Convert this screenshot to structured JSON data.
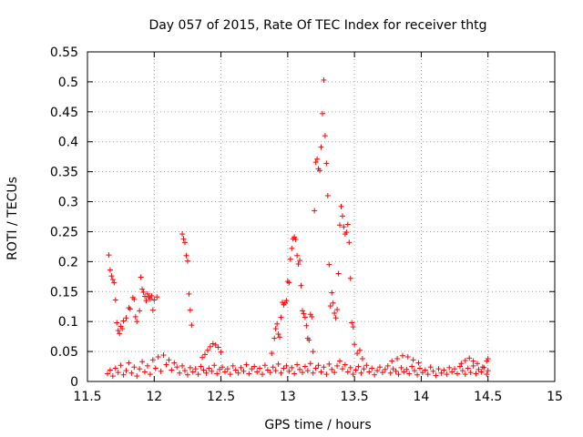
{
  "chart_data": {
    "type": "scatter",
    "title": "Day 057 of 2015, Rate Of TEC Index for receiver thtg",
    "xlabel": "GPS time / hours",
    "ylabel": "ROTI / TECUs",
    "xlim": [
      11.5,
      15
    ],
    "ylim": [
      0,
      0.55
    ],
    "xticks": [
      "11.5",
      "12",
      "12.5",
      "13",
      "13.5",
      "14",
      "14.5",
      "15"
    ],
    "yticks": [
      "0",
      "0.05",
      "0.1",
      "0.15",
      "0.2",
      "0.25",
      "0.3",
      "0.35",
      "0.4",
      "0.45",
      "0.5",
      "0.55"
    ],
    "grid": true,
    "marker": "+",
    "color": "#ff0000",
    "series": [
      {
        "name": "ROTI",
        "points": [
          [
            11.66,
            0.211
          ],
          [
            11.67,
            0.186
          ],
          [
            11.68,
            0.176
          ],
          [
            11.69,
            0.17
          ],
          [
            11.7,
            0.165
          ],
          [
            11.71,
            0.136
          ],
          [
            11.72,
            0.098
          ],
          [
            11.73,
            0.085
          ],
          [
            11.74,
            0.08
          ],
          [
            11.75,
            0.092
          ],
          [
            11.76,
            0.088
          ],
          [
            11.77,
            0.101
          ],
          [
            11.79,
            0.106
          ],
          [
            11.81,
            0.123
          ],
          [
            11.82,
            0.121
          ],
          [
            11.84,
            0.14
          ],
          [
            11.85,
            0.137
          ],
          [
            11.86,
            0.108
          ],
          [
            11.87,
            0.1
          ],
          [
            11.89,
            0.118
          ],
          [
            11.9,
            0.174
          ],
          [
            11.91,
            0.154
          ],
          [
            11.92,
            0.149
          ],
          [
            11.93,
            0.142
          ],
          [
            11.94,
            0.135
          ],
          [
            11.95,
            0.146
          ],
          [
            11.96,
            0.141
          ],
          [
            11.97,
            0.138
          ],
          [
            11.98,
            0.143
          ],
          [
            11.99,
            0.119
          ],
          [
            12.0,
            0.136
          ],
          [
            12.02,
            0.141
          ],
          [
            12.21,
            0.246
          ],
          [
            12.22,
            0.238
          ],
          [
            12.23,
            0.232
          ],
          [
            12.24,
            0.21
          ],
          [
            12.25,
            0.201
          ],
          [
            12.26,
            0.146
          ],
          [
            12.27,
            0.119
          ],
          [
            12.28,
            0.094
          ],
          [
            12.36,
            0.04
          ],
          [
            12.38,
            0.045
          ],
          [
            12.4,
            0.052
          ],
          [
            12.42,
            0.058
          ],
          [
            12.44,
            0.063
          ],
          [
            12.46,
            0.061
          ],
          [
            12.48,
            0.057
          ],
          [
            12.5,
            0.049
          ],
          [
            12.88,
            0.047
          ],
          [
            12.9,
            0.072
          ],
          [
            12.91,
            0.088
          ],
          [
            12.92,
            0.096
          ],
          [
            12.93,
            0.079
          ],
          [
            12.94,
            0.074
          ],
          [
            12.95,
            0.107
          ],
          [
            12.96,
            0.132
          ],
          [
            12.97,
            0.128
          ],
          [
            12.98,
            0.131
          ],
          [
            12.99,
            0.135
          ],
          [
            13.0,
            0.167
          ],
          [
            13.01,
            0.165
          ],
          [
            13.02,
            0.204
          ],
          [
            13.03,
            0.222
          ],
          [
            13.04,
            0.238
          ],
          [
            13.05,
            0.241
          ],
          [
            13.06,
            0.237
          ],
          [
            13.07,
            0.21
          ],
          [
            13.08,
            0.196
          ],
          [
            13.09,
            0.202
          ],
          [
            13.1,
            0.16
          ],
          [
            13.11,
            0.118
          ],
          [
            13.12,
            0.113
          ],
          [
            13.13,
            0.107
          ],
          [
            13.14,
            0.093
          ],
          [
            13.15,
            0.072
          ],
          [
            13.16,
            0.069
          ],
          [
            13.17,
            0.112
          ],
          [
            13.18,
            0.108
          ],
          [
            13.19,
            0.05
          ],
          [
            13.2,
            0.285
          ],
          [
            13.21,
            0.366
          ],
          [
            13.22,
            0.371
          ],
          [
            13.23,
            0.355
          ],
          [
            13.24,
            0.352
          ],
          [
            13.25,
            0.391
          ],
          [
            13.26,
            0.447
          ],
          [
            13.27,
            0.503
          ],
          [
            13.28,
            0.41
          ],
          [
            13.29,
            0.364
          ],
          [
            13.3,
            0.31
          ],
          [
            13.31,
            0.195
          ],
          [
            13.32,
            0.126
          ],
          [
            13.33,
            0.148
          ],
          [
            13.34,
            0.131
          ],
          [
            13.35,
            0.114
          ],
          [
            13.36,
            0.106
          ],
          [
            13.37,
            0.12
          ],
          [
            13.38,
            0.18
          ],
          [
            13.39,
            0.261
          ],
          [
            13.4,
            0.292
          ],
          [
            13.41,
            0.276
          ],
          [
            13.42,
            0.258
          ],
          [
            13.43,
            0.246
          ],
          [
            13.44,
            0.249
          ],
          [
            13.45,
            0.262
          ],
          [
            13.46,
            0.232
          ],
          [
            13.47,
            0.172
          ],
          [
            13.48,
            0.098
          ],
          [
            13.49,
            0.091
          ],
          [
            13.5,
            0.062
          ],
          [
            13.52,
            0.047
          ],
          [
            13.54,
            0.052
          ],
          [
            13.56,
            0.038
          ],
          [
            13.78,
            0.034
          ],
          [
            13.82,
            0.038
          ],
          [
            13.86,
            0.043
          ],
          [
            13.9,
            0.041
          ],
          [
            13.94,
            0.036
          ],
          [
            13.98,
            0.031
          ],
          [
            14.3,
            0.03
          ],
          [
            14.33,
            0.035
          ],
          [
            14.36,
            0.039
          ],
          [
            14.39,
            0.034
          ],
          [
            14.42,
            0.03
          ],
          [
            14.46,
            0.024
          ],
          [
            14.49,
            0.034
          ],
          [
            14.5,
            0.038
          ],
          [
            11.65,
            0.013
          ],
          [
            11.67,
            0.019
          ],
          [
            11.69,
            0.009
          ],
          [
            11.71,
            0.022
          ],
          [
            11.73,
            0.015
          ],
          [
            11.75,
            0.027
          ],
          [
            11.77,
            0.011
          ],
          [
            11.79,
            0.018
          ],
          [
            11.81,
            0.031
          ],
          [
            11.83,
            0.014
          ],
          [
            11.85,
            0.024
          ],
          [
            11.87,
            0.009
          ],
          [
            11.89,
            0.021
          ],
          [
            11.91,
            0.033
          ],
          [
            11.93,
            0.016
          ],
          [
            11.95,
            0.026
          ],
          [
            11.97,
            0.012
          ],
          [
            11.99,
            0.036
          ],
          [
            12.01,
            0.022
          ],
          [
            12.03,
            0.041
          ],
          [
            12.05,
            0.017
          ],
          [
            12.07,
            0.044
          ],
          [
            12.09,
            0.028
          ],
          [
            12.11,
            0.036
          ],
          [
            12.13,
            0.019
          ],
          [
            12.15,
            0.031
          ],
          [
            12.17,
            0.024
          ],
          [
            12.19,
            0.014
          ],
          [
            12.21,
            0.026
          ],
          [
            12.23,
            0.018
          ],
          [
            12.25,
            0.011
          ],
          [
            12.27,
            0.023
          ],
          [
            12.29,
            0.016
          ],
          [
            12.31,
            0.021
          ],
          [
            12.33,
            0.012
          ],
          [
            12.35,
            0.025
          ],
          [
            12.37,
            0.019
          ],
          [
            12.39,
            0.014
          ],
          [
            12.41,
            0.022
          ],
          [
            12.43,
            0.017
          ],
          [
            12.45,
            0.027
          ],
          [
            12.47,
            0.013
          ],
          [
            12.49,
            0.02
          ],
          [
            12.51,
            0.024
          ],
          [
            12.53,
            0.016
          ],
          [
            12.55,
            0.021
          ],
          [
            12.57,
            0.012
          ],
          [
            12.59,
            0.026
          ],
          [
            12.61,
            0.019
          ],
          [
            12.63,
            0.014
          ],
          [
            12.65,
            0.023
          ],
          [
            12.67,
            0.017
          ],
          [
            12.69,
            0.028
          ],
          [
            12.71,
            0.013
          ],
          [
            12.73,
            0.021
          ],
          [
            12.75,
            0.025
          ],
          [
            12.77,
            0.016
          ],
          [
            12.79,
            0.022
          ],
          [
            12.81,
            0.012
          ],
          [
            12.83,
            0.027
          ],
          [
            12.85,
            0.019
          ],
          [
            12.87,
            0.015
          ],
          [
            12.89,
            0.024
          ],
          [
            12.91,
            0.018
          ],
          [
            12.93,
            0.029
          ],
          [
            12.95,
            0.014
          ],
          [
            12.97,
            0.022
          ],
          [
            12.99,
            0.026
          ],
          [
            13.01,
            0.017
          ],
          [
            13.03,
            0.023
          ],
          [
            13.05,
            0.013
          ],
          [
            13.07,
            0.028
          ],
          [
            13.09,
            0.02
          ],
          [
            13.11,
            0.015
          ],
          [
            13.13,
            0.025
          ],
          [
            13.15,
            0.018
          ],
          [
            13.17,
            0.03
          ],
          [
            13.19,
            0.014
          ],
          [
            13.21,
            0.022
          ],
          [
            13.23,
            0.027
          ],
          [
            13.25,
            0.016
          ],
          [
            13.27,
            0.024
          ],
          [
            13.29,
            0.012
          ],
          [
            13.31,
            0.029
          ],
          [
            13.33,
            0.02
          ],
          [
            13.35,
            0.015
          ],
          [
            13.37,
            0.026
          ],
          [
            13.39,
            0.034
          ],
          [
            13.41,
            0.021
          ],
          [
            13.43,
            0.028
          ],
          [
            13.45,
            0.016
          ],
          [
            13.47,
            0.023
          ],
          [
            13.49,
            0.012
          ],
          [
            13.51,
            0.019
          ],
          [
            13.53,
            0.025
          ],
          [
            13.55,
            0.014
          ],
          [
            13.57,
            0.021
          ],
          [
            13.59,
            0.027
          ],
          [
            13.61,
            0.016
          ],
          [
            13.63,
            0.022
          ],
          [
            13.65,
            0.011
          ],
          [
            13.67,
            0.018
          ],
          [
            13.69,
            0.024
          ],
          [
            13.71,
            0.015
          ],
          [
            13.73,
            0.02
          ],
          [
            13.75,
            0.026
          ],
          [
            13.77,
            0.014
          ],
          [
            13.79,
            0.021
          ],
          [
            13.81,
            0.017
          ],
          [
            13.83,
            0.012
          ],
          [
            13.85,
            0.023
          ],
          [
            13.87,
            0.016
          ],
          [
            13.89,
            0.02
          ],
          [
            13.91,
            0.013
          ],
          [
            13.93,
            0.025
          ],
          [
            13.95,
            0.018
          ],
          [
            13.97,
            0.011
          ],
          [
            13.99,
            0.022
          ],
          [
            14.01,
            0.015
          ],
          [
            14.03,
            0.019
          ],
          [
            14.05,
            0.012
          ],
          [
            14.07,
            0.024
          ],
          [
            14.09,
            0.017
          ],
          [
            14.11,
            0.01
          ],
          [
            14.13,
            0.021
          ],
          [
            14.15,
            0.014
          ],
          [
            14.17,
            0.019
          ],
          [
            14.19,
            0.012
          ],
          [
            14.21,
            0.023
          ],
          [
            14.23,
            0.016
          ],
          [
            14.25,
            0.021
          ],
          [
            14.27,
            0.013
          ],
          [
            14.29,
            0.025
          ],
          [
            14.31,
            0.018
          ],
          [
            14.33,
            0.012
          ],
          [
            14.35,
            0.022
          ],
          [
            14.37,
            0.015
          ],
          [
            14.39,
            0.026
          ],
          [
            14.41,
            0.013
          ],
          [
            14.43,
            0.02
          ],
          [
            14.45,
            0.016
          ],
          [
            14.47,
            0.023
          ],
          [
            14.49,
            0.012
          ],
          [
            14.5,
            0.018
          ]
        ]
      }
    ]
  }
}
